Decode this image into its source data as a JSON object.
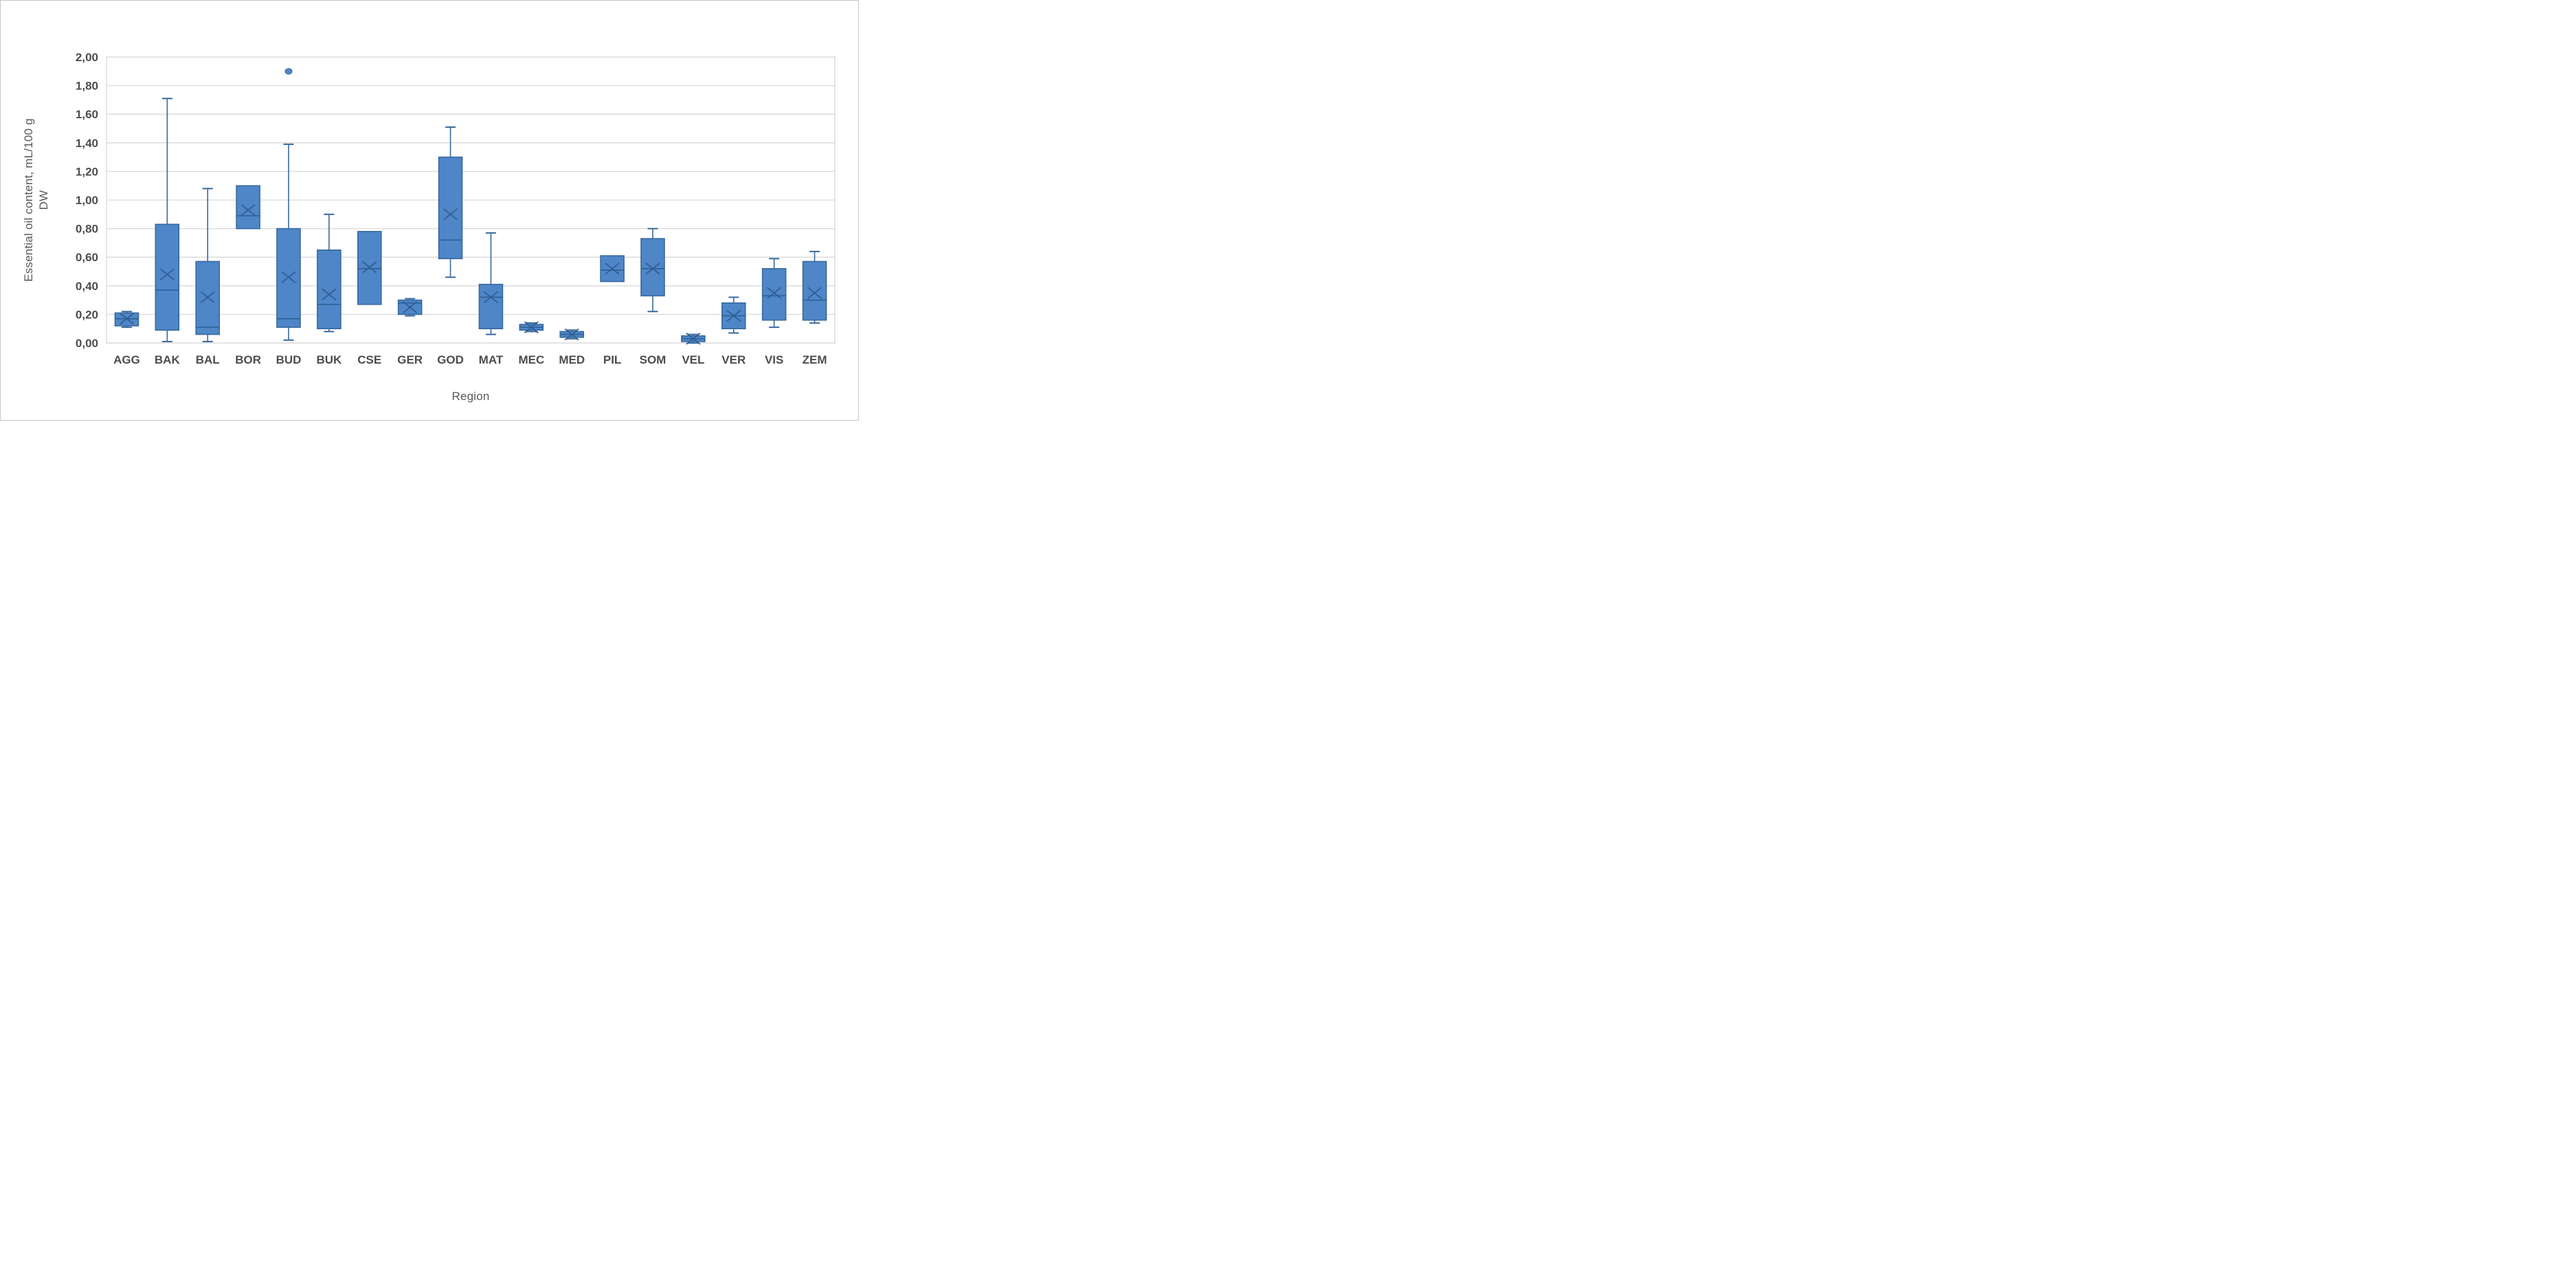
{
  "figure": {
    "background": "#ffffff",
    "border_color": "#c6c6c6"
  },
  "chart_data": {
    "type": "box",
    "title": "",
    "xlabel": "Region",
    "ylabel_line1": "Essential oil content, mL/100 g",
    "ylabel_line2": "DW",
    "ylim": [
      0.0,
      2.0
    ],
    "ytick_step": 0.2,
    "ytick_labels": [
      "0,00",
      "0,20",
      "0,40",
      "0,60",
      "0,80",
      "1,00",
      "1,20",
      "1,40",
      "1,60",
      "1,80",
      "2,00"
    ],
    "decimal_separator": ",",
    "grid": true,
    "legend": "none",
    "categories": [
      "AGG",
      "BAK",
      "BAL",
      "BOR",
      "BUD",
      "BUK",
      "CSE",
      "GER",
      "GOD",
      "MAT",
      "MEC",
      "MED",
      "PIL",
      "SOM",
      "VEL",
      "VER",
      "VIS",
      "ZEM"
    ],
    "series": [
      {
        "label": "AGG",
        "min": 0.11,
        "q1": 0.12,
        "median": 0.17,
        "mean": 0.17,
        "q3": 0.21,
        "max": 0.22,
        "outliers": []
      },
      {
        "label": "BAK",
        "min": 0.01,
        "q1": 0.09,
        "median": 0.37,
        "mean": 0.48,
        "q3": 0.83,
        "max": 1.71,
        "outliers": []
      },
      {
        "label": "BAL",
        "min": 0.01,
        "q1": 0.06,
        "median": 0.11,
        "mean": 0.32,
        "q3": 0.57,
        "max": 1.08,
        "outliers": []
      },
      {
        "label": "BOR",
        "min": null,
        "q1": 0.8,
        "median": 0.89,
        "mean": 0.93,
        "q3": 1.1,
        "max": null,
        "outliers": []
      },
      {
        "label": "BUD",
        "min": 0.02,
        "q1": 0.11,
        "median": 0.17,
        "mean": 0.46,
        "q3": 0.8,
        "max": 1.39,
        "outliers": [
          1.9
        ]
      },
      {
        "label": "BUK",
        "min": 0.08,
        "q1": 0.1,
        "median": 0.27,
        "mean": 0.34,
        "q3": 0.65,
        "max": 0.9,
        "outliers": []
      },
      {
        "label": "CSE",
        "min": null,
        "q1": 0.27,
        "median": 0.52,
        "mean": 0.53,
        "q3": 0.78,
        "max": null,
        "outliers": []
      },
      {
        "label": "GER",
        "min": 0.19,
        "q1": 0.2,
        "median": 0.28,
        "mean": 0.25,
        "q3": 0.3,
        "max": 0.31,
        "outliers": []
      },
      {
        "label": "GOD",
        "min": 0.46,
        "q1": 0.59,
        "median": 0.72,
        "mean": 0.9,
        "q3": 1.3,
        "max": 1.51,
        "outliers": []
      },
      {
        "label": "MAT",
        "min": 0.06,
        "q1": 0.1,
        "median": 0.32,
        "mean": 0.32,
        "q3": 0.41,
        "max": 0.77,
        "outliers": []
      },
      {
        "label": "MEC",
        "min": 0.08,
        "q1": 0.09,
        "median": 0.11,
        "mean": 0.11,
        "q3": 0.13,
        "max": 0.14,
        "outliers": []
      },
      {
        "label": "MED",
        "min": 0.03,
        "q1": 0.04,
        "median": 0.06,
        "mean": 0.06,
        "q3": 0.08,
        "max": 0.09,
        "outliers": []
      },
      {
        "label": "PIL",
        "min": null,
        "q1": 0.43,
        "median": 0.51,
        "mean": 0.52,
        "q3": 0.61,
        "max": null,
        "outliers": []
      },
      {
        "label": "SOM",
        "min": 0.22,
        "q1": 0.33,
        "median": 0.52,
        "mean": 0.52,
        "q3": 0.73,
        "max": 0.8,
        "outliers": []
      },
      {
        "label": "VEL",
        "min": 0.0,
        "q1": 0.01,
        "median": 0.03,
        "mean": 0.03,
        "q3": 0.05,
        "max": 0.06,
        "outliers": []
      },
      {
        "label": "VER",
        "min": 0.07,
        "q1": 0.1,
        "median": 0.19,
        "mean": 0.19,
        "q3": 0.28,
        "max": 0.32,
        "outliers": []
      },
      {
        "label": "VIS",
        "min": 0.11,
        "q1": 0.16,
        "median": 0.33,
        "mean": 0.35,
        "q3": 0.52,
        "max": 0.59,
        "outliers": []
      },
      {
        "label": "ZEM",
        "min": 0.14,
        "q1": 0.16,
        "median": 0.3,
        "mean": 0.35,
        "q3": 0.57,
        "max": 0.64,
        "outliers": []
      }
    ],
    "colors": {
      "box_fill": "#4e86c8",
      "box_border": "#38699f",
      "whisker": "#38699f",
      "median_line": "#2f5f93",
      "mean_marker": "#2f5f93",
      "outlier_fill": "#4e86c8",
      "gridline": "#d9d9d9",
      "plot_border": "#d9d9d9",
      "tick_text": "#4d4d4d",
      "title_text": "#595959",
      "background": "#ffffff"
    }
  }
}
